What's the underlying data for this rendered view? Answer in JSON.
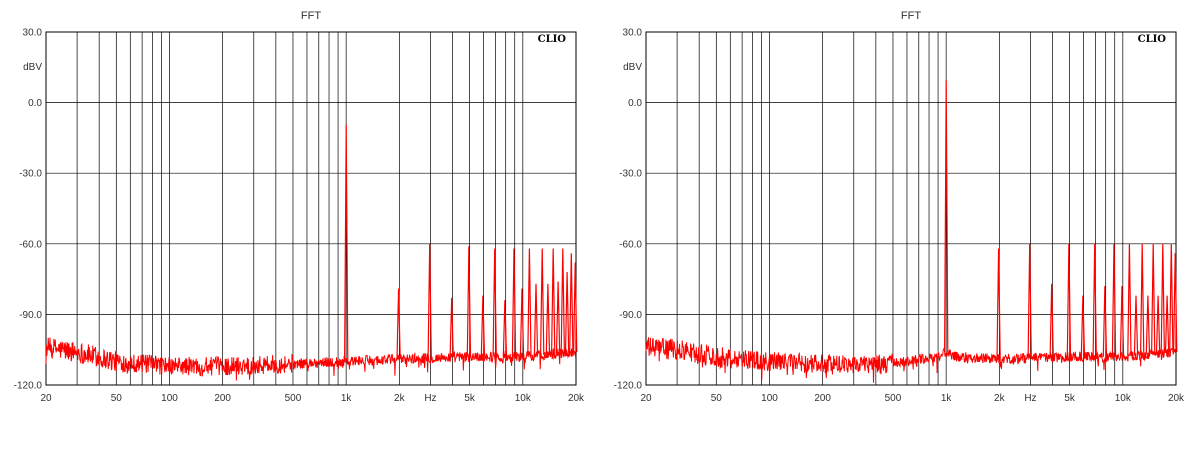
{
  "chart_data": [
    {
      "type": "line",
      "title": "FFT",
      "brand": "CLIO",
      "ylabel": "dBV",
      "xlabel": "Hz",
      "xscale": "log",
      "xlim": [
        20,
        20000
      ],
      "ylim": [
        -120,
        30
      ],
      "grid": true,
      "line_color": "#ff0000",
      "x_ticks": [
        20,
        50,
        100,
        200,
        500,
        1000,
        2000,
        5000,
        10000,
        20000
      ],
      "x_tick_labels": [
        "20",
        "50",
        "100",
        "200",
        "500",
        "1k",
        "2k",
        "5k",
        "10k",
        "20k"
      ],
      "y_ticks": [
        30,
        0,
        -30,
        -60,
        -90,
        -120
      ],
      "y_tick_labels": [
        "30.0",
        "0.0",
        "-30.0",
        "-60.0",
        "-90.0",
        "-120.0"
      ],
      "noise_floor": [
        [
          20,
          -104
        ],
        [
          30,
          -106
        ],
        [
          50,
          -110
        ],
        [
          100,
          -112
        ],
        [
          200,
          -112
        ],
        [
          500,
          -111
        ],
        [
          1000,
          -110
        ],
        [
          2000,
          -109
        ],
        [
          5000,
          -108
        ],
        [
          10000,
          -108
        ],
        [
          20000,
          -106
        ]
      ],
      "peaks": [
        {
          "x": 1000,
          "y": -9.5
        },
        {
          "x": 1980,
          "y": -79
        },
        {
          "x": 2970,
          "y": -60
        },
        {
          "x": 3960,
          "y": -83
        },
        {
          "x": 4950,
          "y": -61
        },
        {
          "x": 5940,
          "y": -82
        },
        {
          "x": 6930,
          "y": -62
        },
        {
          "x": 7920,
          "y": -84
        },
        {
          "x": 8910,
          "y": -62
        },
        {
          "x": 9900,
          "y": -79
        },
        {
          "x": 10890,
          "y": -62
        },
        {
          "x": 11880,
          "y": -77
        },
        {
          "x": 12870,
          "y": -62
        },
        {
          "x": 13860,
          "y": -77
        },
        {
          "x": 14850,
          "y": -62
        },
        {
          "x": 15840,
          "y": -76
        },
        {
          "x": 16830,
          "y": -62
        },
        {
          "x": 17820,
          "y": -72
        },
        {
          "x": 18810,
          "y": -64
        },
        {
          "x": 19800,
          "y": -68
        }
      ]
    },
    {
      "type": "line",
      "title": "FFT",
      "brand": "CLIO",
      "ylabel": "dBV",
      "xlabel": "Hz",
      "xscale": "log",
      "xlim": [
        20,
        20000
      ],
      "ylim": [
        -120,
        30
      ],
      "grid": true,
      "line_color": "#ff0000",
      "x_ticks": [
        20,
        50,
        100,
        200,
        500,
        1000,
        2000,
        5000,
        10000,
        20000
      ],
      "x_tick_labels": [
        "20",
        "50",
        "100",
        "200",
        "500",
        "1k",
        "2k",
        "5k",
        "10k",
        "20k"
      ],
      "y_ticks": [
        30,
        0,
        -30,
        -60,
        -90,
        -120
      ],
      "y_tick_labels": [
        "30.0",
        "0.0",
        "-30.0",
        "-60.0",
        "-90.0",
        "-120.0"
      ],
      "noise_floor": [
        [
          20,
          -104
        ],
        [
          30,
          -105
        ],
        [
          50,
          -108
        ],
        [
          100,
          -110
        ],
        [
          200,
          -111
        ],
        [
          500,
          -111
        ],
        [
          900,
          -108
        ],
        [
          1000,
          -106
        ],
        [
          1100,
          -108
        ],
        [
          2000,
          -109
        ],
        [
          5000,
          -108
        ],
        [
          10000,
          -108
        ],
        [
          20000,
          -106
        ]
      ],
      "peaks": [
        {
          "x": 1000,
          "y": 9.5
        },
        {
          "x": 1980,
          "y": -62
        },
        {
          "x": 2970,
          "y": -60
        },
        {
          "x": 3960,
          "y": -77
        },
        {
          "x": 4950,
          "y": -60
        },
        {
          "x": 5940,
          "y": -82
        },
        {
          "x": 6930,
          "y": -60
        },
        {
          "x": 7920,
          "y": -78
        },
        {
          "x": 8910,
          "y": -60
        },
        {
          "x": 9900,
          "y": -78
        },
        {
          "x": 10890,
          "y": -60
        },
        {
          "x": 11880,
          "y": -82
        },
        {
          "x": 12870,
          "y": -60
        },
        {
          "x": 13860,
          "y": -82
        },
        {
          "x": 14850,
          "y": -60
        },
        {
          "x": 15840,
          "y": -82
        },
        {
          "x": 16830,
          "y": -60
        },
        {
          "x": 17820,
          "y": -82
        },
        {
          "x": 18810,
          "y": -60
        },
        {
          "x": 19800,
          "y": -64
        }
      ]
    }
  ]
}
